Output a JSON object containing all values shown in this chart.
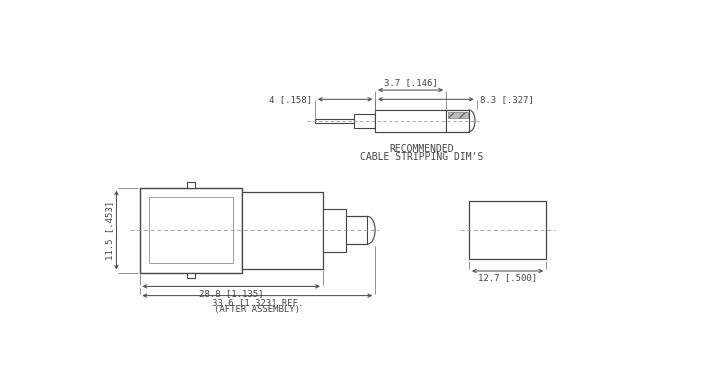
{
  "line_color": "#444444",
  "dim_color": "#444444",
  "font_size": 6.5,
  "font_size_label": 7.0,
  "top_caption": [
    "RECOMMENDED",
    "CABLE STRIPPING DIM'S"
  ],
  "bottom_dims": {
    "width_28_8": "28.8 [1.135]",
    "width_33_6": "33.6 [1.323] REF.",
    "after_assembly": "(AFTER ASSEMBLY)",
    "height_11_5": "11.5 [.453]",
    "width_12_7": "12.7 [.500]"
  },
  "top_dims": {
    "dim_4": "4 [.158]",
    "dim_3_7": "3.7 [.146]",
    "dim_8_3": "8.3 [.327]"
  }
}
